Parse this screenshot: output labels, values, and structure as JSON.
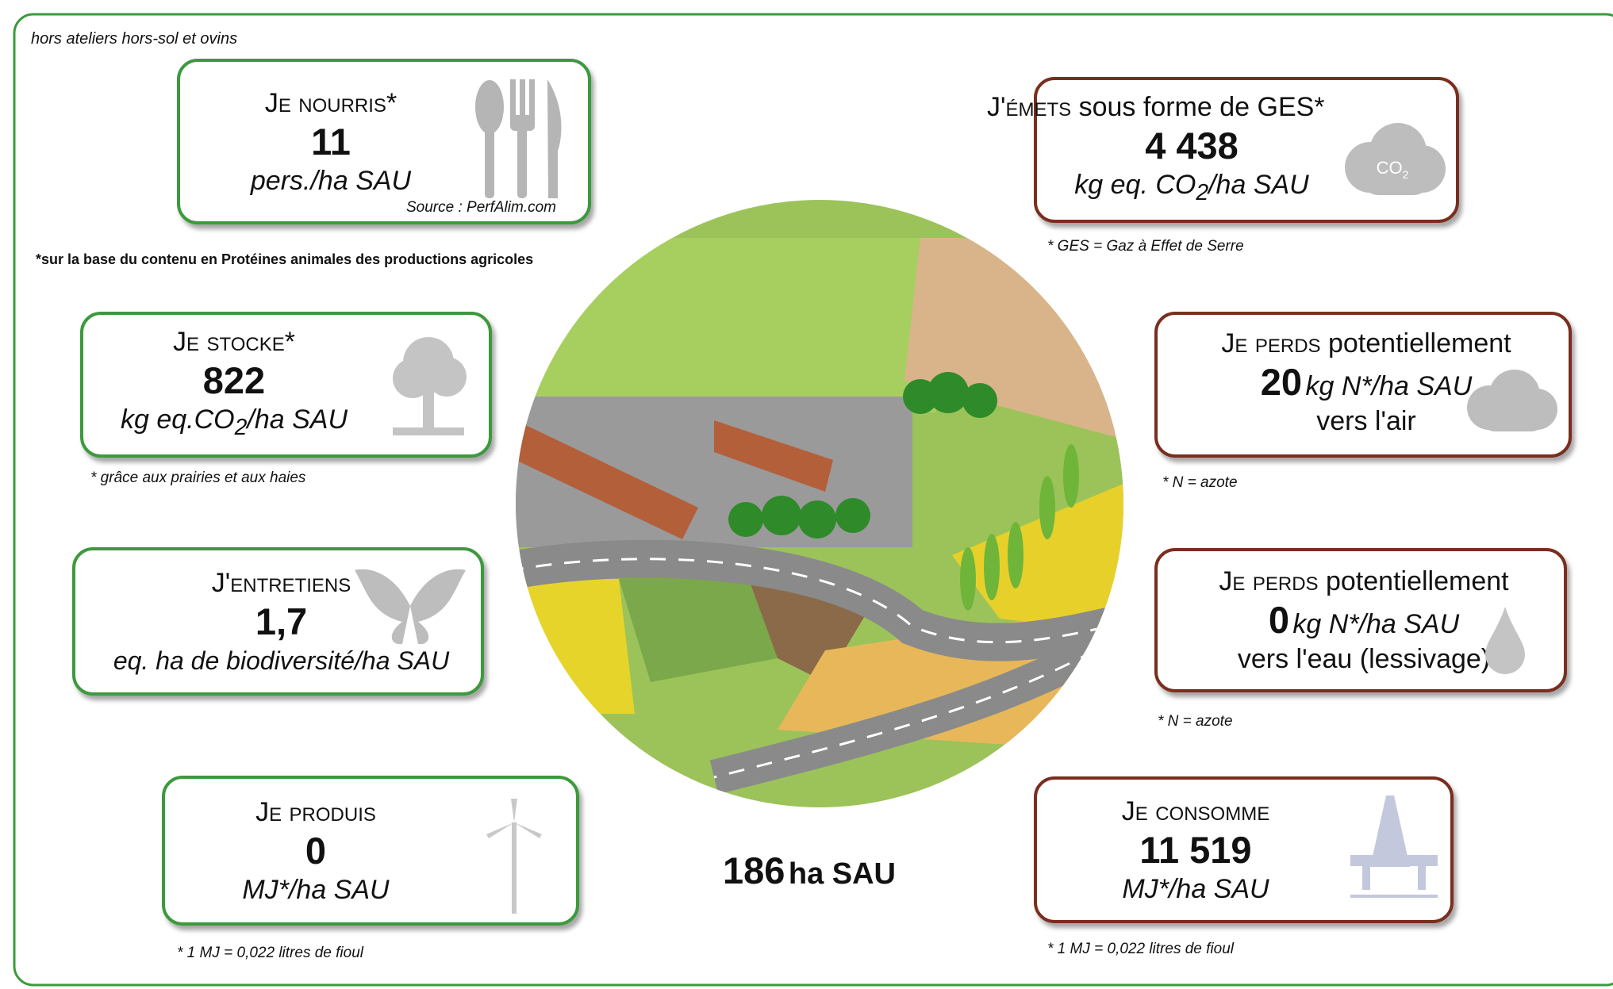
{
  "note": "hors ateliers hors-sol et ovins",
  "center": {
    "value": "186",
    "unit": "ha SAU"
  },
  "boxes": {
    "nourris": {
      "title": "Je nourris*",
      "value": "11",
      "unit": "pers./ha SAU",
      "source": "Source : PerfAlim.com",
      "footnote": "*sur la base du contenu en Protéines animales des productions agricoles"
    },
    "emets": {
      "title_caps": "J'émets",
      "title": " sous forme de GES*",
      "value": "4 438",
      "unit": "kg eq. CO",
      "unit_sub": "2",
      "unit_end": "/ha SAU",
      "icon": "CO",
      "icon_sub": "2",
      "footnote": "* GES = Gaz à Effet de Serre"
    },
    "stocke": {
      "title": "Je stocke*",
      "value": "822",
      "unit": "kg eq.CO",
      "unit_sub": "2",
      "unit_end": "/ha SAU",
      "footnote": "* grâce aux prairies et aux haies"
    },
    "perds_air": {
      "title_caps": "Je perds",
      "title": " potentiellement",
      "value": "20",
      "unit": "kg N*/ha SAU",
      "target": "vers l'air",
      "footnote": "* N = azote"
    },
    "entretiens": {
      "title": "J'entretiens",
      "value": "1,7",
      "unit": "eq. ha de biodiversité/ha SAU"
    },
    "perds_eau": {
      "title_caps": "Je perds",
      "title": " potentiellement",
      "value": "0",
      "unit": "kg N*/ha SAU",
      "target": "vers l'eau (lessivage)",
      "footnote": "* N = azote"
    },
    "produis": {
      "title": "Je produis",
      "value": "0",
      "unit": "MJ*/ha SAU",
      "footnote": "* 1 MJ = 0,022 litres de fioul"
    },
    "consomme": {
      "title": "Je consomme",
      "value": "11 519",
      "unit": "MJ*/ha SAU",
      "footnote": "* 1 MJ = 0,022 litres de fioul"
    }
  }
}
